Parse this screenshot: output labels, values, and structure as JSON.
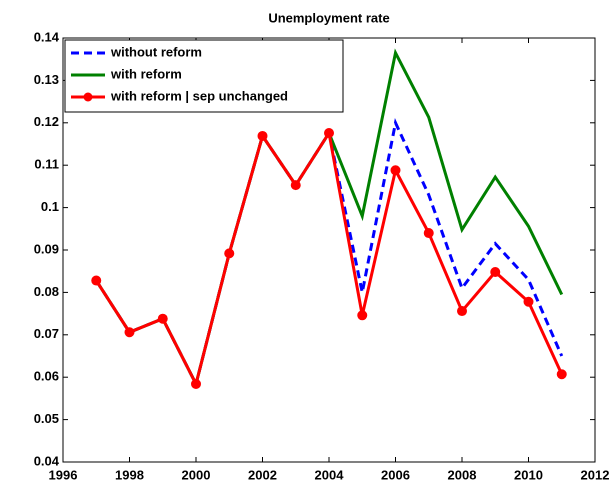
{
  "chart_data": {
    "type": "line",
    "title": "Unemployment rate",
    "x": [
      1997,
      1998,
      1999,
      2000,
      2001,
      2002,
      2003,
      2004,
      2005,
      2006,
      2007,
      2008,
      2009,
      2010,
      2011
    ],
    "series": [
      {
        "name": "without reform",
        "color": "#0000ff",
        "dash": true,
        "markers": false,
        "values": [
          0.0828,
          0.0706,
          0.0738,
          0.0584,
          0.0892,
          0.1169,
          0.1053,
          0.1176,
          0.08,
          0.12,
          0.103,
          0.081,
          0.0915,
          0.083,
          0.065
        ]
      },
      {
        "name": "with reform",
        "color": "#008000",
        "dash": false,
        "markers": false,
        "values": [
          0.0828,
          0.0706,
          0.0738,
          0.0584,
          0.0892,
          0.1169,
          0.1053,
          0.1176,
          0.098,
          0.1365,
          0.1213,
          0.0948,
          0.1072,
          0.0956,
          0.0795
        ]
      },
      {
        "name": "with reform | sep unchanged",
        "color": "#ff0000",
        "dash": false,
        "markers": true,
        "values": [
          0.0828,
          0.0706,
          0.0738,
          0.0584,
          0.0892,
          0.1169,
          0.1053,
          0.1176,
          0.0746,
          0.1088,
          0.094,
          0.0756,
          0.0848,
          0.0778,
          0.0607
        ]
      }
    ],
    "xlim": [
      1996,
      2012
    ],
    "xticks": [
      1996,
      1998,
      2000,
      2002,
      2004,
      2006,
      2008,
      2010,
      2012
    ],
    "ylim": [
      0.04,
      0.14
    ],
    "yticks": [
      0.04,
      0.05,
      0.06,
      0.07,
      0.08,
      0.09,
      0.1,
      0.11,
      0.12,
      0.13,
      0.14
    ],
    "grid": false,
    "legend": "upper-left"
  }
}
